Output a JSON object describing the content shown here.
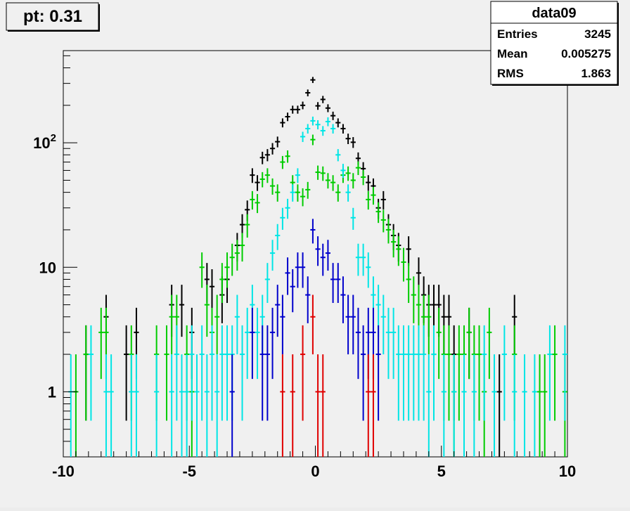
{
  "title_box": {
    "label": "pt: 0.31"
  },
  "stats_box": {
    "name": "data09",
    "rows": [
      {
        "key": "Entries",
        "value": "3245"
      },
      {
        "key": "Mean",
        "value": "0.005275"
      },
      {
        "key": "RMS",
        "value": "1.863"
      }
    ]
  },
  "chart_data": {
    "type": "scatter",
    "title": "",
    "xlabel": "",
    "ylabel": "",
    "xlim": [
      -10,
      10
    ],
    "ylim": [
      0.3,
      550
    ],
    "yscale": "log",
    "grid": false,
    "xticks": [
      -10,
      -5,
      0,
      5,
      10
    ],
    "xtick_labels": [
      "-10",
      "-5",
      "0",
      "5",
      "10"
    ],
    "yticks": [
      1,
      10,
      100
    ],
    "ytick_labels": [
      "1",
      "10",
      "10²"
    ],
    "bin_width": 0.2,
    "series": [
      {
        "color": "#000000",
        "points": [
          [
            -9.1,
            2
          ],
          [
            -8.3,
            4
          ],
          [
            -7.5,
            2
          ],
          [
            -7.1,
            3
          ],
          [
            -5.7,
            5
          ],
          [
            -5.3,
            5
          ],
          [
            -4.9,
            3
          ],
          [
            -4.3,
            8
          ],
          [
            -4.1,
            7
          ],
          [
            -3.7,
            6
          ],
          [
            -3.5,
            8
          ],
          [
            -3.1,
            15
          ],
          [
            -2.9,
            22
          ],
          [
            -2.7,
            29
          ],
          [
            -2.5,
            55
          ],
          [
            -2.3,
            48
          ],
          [
            -2.1,
            76
          ],
          [
            -1.9,
            80
          ],
          [
            -1.7,
            90
          ],
          [
            -1.5,
            102
          ],
          [
            -1.3,
            145
          ],
          [
            -1.1,
            162
          ],
          [
            -0.9,
            185
          ],
          [
            -0.7,
            185
          ],
          [
            -0.5,
            200
          ],
          [
            -0.3,
            252
          ],
          [
            -0.1,
            320
          ],
          [
            0.1,
            198
          ],
          [
            0.3,
            223
          ],
          [
            0.5,
            190
          ],
          [
            0.7,
            165
          ],
          [
            0.9,
            145
          ],
          [
            1.1,
            130
          ],
          [
            1.3,
            108
          ],
          [
            1.5,
            101
          ],
          [
            1.7,
            75
          ],
          [
            1.9,
            62
          ],
          [
            2.1,
            48
          ],
          [
            2.3,
            45
          ],
          [
            2.5,
            30
          ],
          [
            2.7,
            35
          ],
          [
            2.9,
            22
          ],
          [
            3.1,
            18
          ],
          [
            3.3,
            15
          ],
          [
            3.7,
            14
          ],
          [
            4.1,
            9
          ],
          [
            4.3,
            6
          ],
          [
            4.5,
            5
          ],
          [
            4.7,
            5
          ],
          [
            4.9,
            5
          ],
          [
            5.1,
            4
          ],
          [
            5.3,
            4
          ],
          [
            5.5,
            2
          ],
          [
            6.1,
            3
          ],
          [
            7.3,
            1
          ],
          [
            7.9,
            4
          ]
        ]
      },
      {
        "color": "#00cc00",
        "points": [
          [
            -9.5,
            1
          ],
          [
            -9.1,
            2
          ],
          [
            -8.5,
            3
          ],
          [
            -8.3,
            3
          ],
          [
            -7.3,
            2
          ],
          [
            -6.3,
            2
          ],
          [
            -5.9,
            2
          ],
          [
            -5.7,
            4
          ],
          [
            -5.5,
            4
          ],
          [
            -5.1,
            2
          ],
          [
            -4.9,
            1
          ],
          [
            -4.5,
            10
          ],
          [
            -4.3,
            5
          ],
          [
            -4.1,
            3
          ],
          [
            -3.9,
            4
          ],
          [
            -3.7,
            8
          ],
          [
            -3.5,
            10
          ],
          [
            -3.3,
            12
          ],
          [
            -3.1,
            13
          ],
          [
            -2.9,
            15
          ],
          [
            -2.7,
            22
          ],
          [
            -2.5,
            35
          ],
          [
            -2.3,
            33
          ],
          [
            -2.1,
            51
          ],
          [
            -1.9,
            55
          ],
          [
            -1.7,
            45
          ],
          [
            -1.5,
            40
          ],
          [
            -1.3,
            70
          ],
          [
            -1.1,
            78
          ],
          [
            -0.9,
            48
          ],
          [
            -0.7,
            40
          ],
          [
            -0.5,
            37
          ],
          [
            -0.3,
            42
          ],
          [
            -0.1,
            106
          ],
          [
            0.1,
            58
          ],
          [
            0.3,
            57
          ],
          [
            0.5,
            50
          ],
          [
            0.7,
            48
          ],
          [
            0.9,
            40
          ],
          [
            1.1,
            55
          ],
          [
            1.3,
            57
          ],
          [
            1.5,
            50
          ],
          [
            1.7,
            63
          ],
          [
            1.9,
            53
          ],
          [
            2.1,
            35
          ],
          [
            2.3,
            38
          ],
          [
            2.5,
            28
          ],
          [
            2.7,
            24
          ],
          [
            2.9,
            20
          ],
          [
            3.1,
            16
          ],
          [
            3.3,
            14
          ],
          [
            3.5,
            11
          ],
          [
            3.7,
            8
          ],
          [
            3.9,
            6
          ],
          [
            4.1,
            5
          ],
          [
            4.3,
            4
          ],
          [
            4.5,
            4
          ],
          [
            4.7,
            2
          ],
          [
            4.9,
            3
          ],
          [
            5.1,
            2
          ],
          [
            5.3,
            2
          ],
          [
            5.5,
            1
          ],
          [
            5.7,
            2
          ],
          [
            5.9,
            2
          ],
          [
            6.1,
            3
          ],
          [
            6.3,
            2
          ],
          [
            6.5,
            2
          ],
          [
            6.7,
            1
          ],
          [
            6.9,
            3
          ],
          [
            7.9,
            2
          ],
          [
            8.9,
            1
          ],
          [
            9.1,
            1
          ],
          [
            9.5,
            2
          ],
          [
            9.9,
            1
          ]
        ]
      },
      {
        "color": "#00e5e5",
        "points": [
          [
            -9.7,
            1
          ],
          [
            -8.9,
            2
          ],
          [
            -8.3,
            1
          ],
          [
            -8.1,
            1
          ],
          [
            -7.3,
            1
          ],
          [
            -7.1,
            1
          ],
          [
            -6.3,
            1
          ],
          [
            -5.7,
            1
          ],
          [
            -5.5,
            2
          ],
          [
            -5.3,
            1
          ],
          [
            -5.1,
            1
          ],
          [
            -4.9,
            2
          ],
          [
            -4.7,
            1
          ],
          [
            -4.5,
            2
          ],
          [
            -4.3,
            1
          ],
          [
            -4.1,
            2
          ],
          [
            -3.9,
            1
          ],
          [
            -3.7,
            2
          ],
          [
            -3.5,
            2
          ],
          [
            -3.3,
            2
          ],
          [
            -3.1,
            4
          ],
          [
            -2.9,
            2
          ],
          [
            -2.7,
            3
          ],
          [
            -2.5,
            5
          ],
          [
            -2.3,
            3
          ],
          [
            -2.1,
            4
          ],
          [
            -1.9,
            8
          ],
          [
            -1.7,
            13
          ],
          [
            -1.5,
            18
          ],
          [
            -1.3,
            25
          ],
          [
            -1.1,
            30
          ],
          [
            -0.9,
            40
          ],
          [
            -0.7,
            55
          ],
          [
            -0.5,
            112
          ],
          [
            -0.3,
            130
          ],
          [
            -0.1,
            150
          ],
          [
            0.1,
            140
          ],
          [
            0.3,
            125
          ],
          [
            0.5,
            148
          ],
          [
            0.7,
            130
          ],
          [
            0.9,
            80
          ],
          [
            1.1,
            60
          ],
          [
            1.3,
            40
          ],
          [
            1.5,
            25
          ],
          [
            1.7,
            12
          ],
          [
            1.9,
            12
          ],
          [
            2.1,
            10
          ],
          [
            2.3,
            6
          ],
          [
            2.5,
            5
          ],
          [
            2.7,
            4
          ],
          [
            2.9,
            3
          ],
          [
            3.1,
            3
          ],
          [
            3.3,
            2
          ],
          [
            3.5,
            2
          ],
          [
            3.7,
            2
          ],
          [
            3.9,
            2
          ],
          [
            4.1,
            2
          ],
          [
            4.3,
            2
          ],
          [
            4.5,
            1
          ],
          [
            4.7,
            2
          ],
          [
            5.1,
            1
          ],
          [
            5.5,
            1
          ],
          [
            5.9,
            1
          ],
          [
            6.3,
            1
          ],
          [
            6.7,
            2
          ],
          [
            7.1,
            1
          ],
          [
            7.5,
            2
          ],
          [
            7.9,
            1
          ],
          [
            8.3,
            1
          ],
          [
            8.7,
            1
          ],
          [
            9.3,
            2
          ],
          [
            9.9,
            2
          ]
        ]
      },
      {
        "color": "#0000cc",
        "points": [
          [
            -3.3,
            1
          ],
          [
            -2.5,
            3
          ],
          [
            -2.1,
            2
          ],
          [
            -1.9,
            2
          ],
          [
            -1.7,
            3
          ],
          [
            -1.5,
            5
          ],
          [
            -1.3,
            4
          ],
          [
            -1.1,
            9
          ],
          [
            -0.9,
            7
          ],
          [
            -0.7,
            10
          ],
          [
            -0.5,
            10
          ],
          [
            -0.3,
            6
          ],
          [
            -0.1,
            20
          ],
          [
            0.1,
            14
          ],
          [
            0.3,
            12
          ],
          [
            0.5,
            13
          ],
          [
            0.7,
            8
          ],
          [
            0.9,
            8
          ],
          [
            1.1,
            6
          ],
          [
            1.3,
            4
          ],
          [
            1.5,
            4
          ],
          [
            1.7,
            3
          ],
          [
            1.9,
            2
          ],
          [
            2.1,
            3
          ],
          [
            2.3,
            3
          ],
          [
            2.5,
            2
          ]
        ]
      },
      {
        "color": "#e00000",
        "points": [
          [
            -1.3,
            1
          ],
          [
            -0.9,
            1
          ],
          [
            -0.5,
            2
          ],
          [
            -0.1,
            4
          ],
          [
            0.1,
            1
          ],
          [
            0.3,
            1
          ],
          [
            2.1,
            1
          ],
          [
            2.3,
            1
          ]
        ]
      }
    ]
  }
}
